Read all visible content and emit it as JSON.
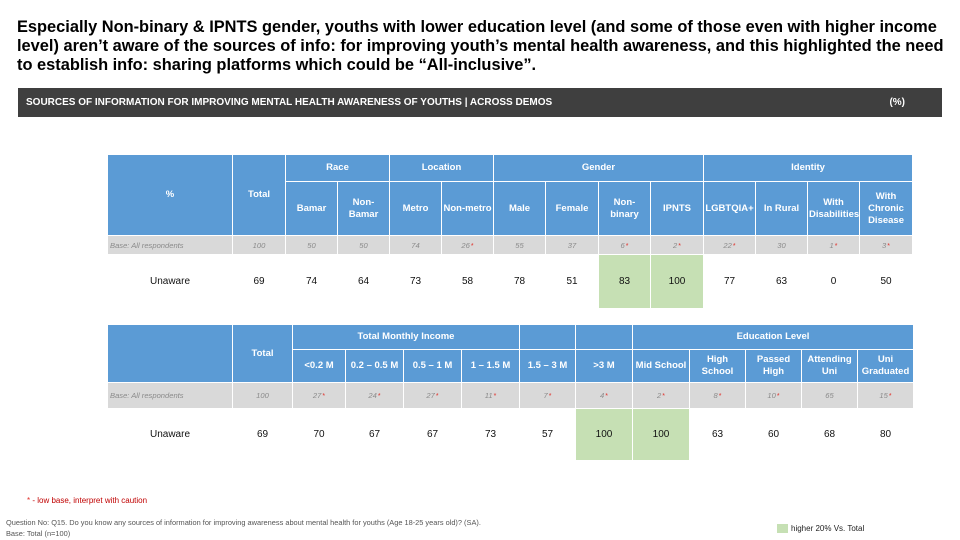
{
  "headline": "Especially Non-binary & IPNTS gender, youths with lower education level (and some of those even with higher income level) aren’t aware of the sources of info: for improving youth’s mental health awareness, and this highlighted the need to establish info: sharing platforms which could be “All-inclusive”.",
  "section": {
    "title": "SOURCES OF INFORMATION FOR IMPROVING MENTAL HEALTH AWARENESS OF YOUTHS | ACROSS DEMOS",
    "unit": "(%)"
  },
  "table1": {
    "corner": "%",
    "total_label": "Total",
    "groups": [
      "Race",
      "Location",
      "Gender",
      "Identity"
    ],
    "columns": [
      "Bamar",
      "Non-Bamar",
      "Metro",
      "Non-metro",
      "Male",
      "Female",
      "Non-binary",
      "IPNTS",
      "LGBTQIA+",
      "In Rural",
      "With Disabilities",
      "With Chronic Disease"
    ],
    "base_label": "Base: All respondents",
    "base_total": "100",
    "base_values": [
      "50",
      "50",
      "74",
      "26",
      "55",
      "37",
      "6",
      "2",
      "22",
      "30",
      "1",
      "3"
    ],
    "base_flags": [
      "",
      "",
      "",
      "*",
      "",
      "",
      "*",
      "*",
      "*",
      "",
      "*",
      "*"
    ],
    "row_label": "Unaware",
    "row_total": "69",
    "row_values": [
      "74",
      "64",
      "73",
      "58",
      "78",
      "51",
      "83",
      "100",
      "77",
      "63",
      "0",
      "50"
    ]
  },
  "table2": {
    "total_label": "Total",
    "groups": [
      "Total Monthly Income",
      "Education Level"
    ],
    "columns": [
      "<0.2 M",
      "0.2 – 0.5 M",
      "0.5 – 1 M",
      "1 – 1.5 M",
      "1.5 – 3 M",
      ">3 M",
      "Mid School",
      "High School",
      "Passed High",
      "Attending Uni",
      "Uni Graduated"
    ],
    "base_label": "Base: All respondents",
    "base_total": "100",
    "base_values": [
      "27",
      "24",
      "27",
      "11",
      "7",
      "4",
      "2",
      "8",
      "10",
      "65",
      "15"
    ],
    "base_flags": [
      "*",
      "*",
      "*",
      "*",
      "*",
      "*",
      "*",
      "*",
      "*",
      "",
      "*"
    ],
    "row_label": "Unaware",
    "row_total": "69",
    "row_values": [
      "70",
      "67",
      "67",
      "73",
      "57",
      "100",
      "100",
      "63",
      "60",
      "68",
      "80"
    ]
  },
  "note": {
    "star": "*",
    "text": " - low base, interpret with caution"
  },
  "footer": {
    "question": "Question No: Q15. Do you know any sources of information for improving awareness about mental health for youths (Age 18-25 years old)? (SA).",
    "base": "Base: Total (n=100)"
  },
  "legend": {
    "label": "higher 20% Vs. Total",
    "color": "#c6e0b4"
  },
  "colors": {
    "header_blue": "#5b9bd5",
    "base_grey": "#d9d9d9",
    "highlight_green": "#c6e0b4",
    "bar_dark": "#3f3f3f"
  }
}
